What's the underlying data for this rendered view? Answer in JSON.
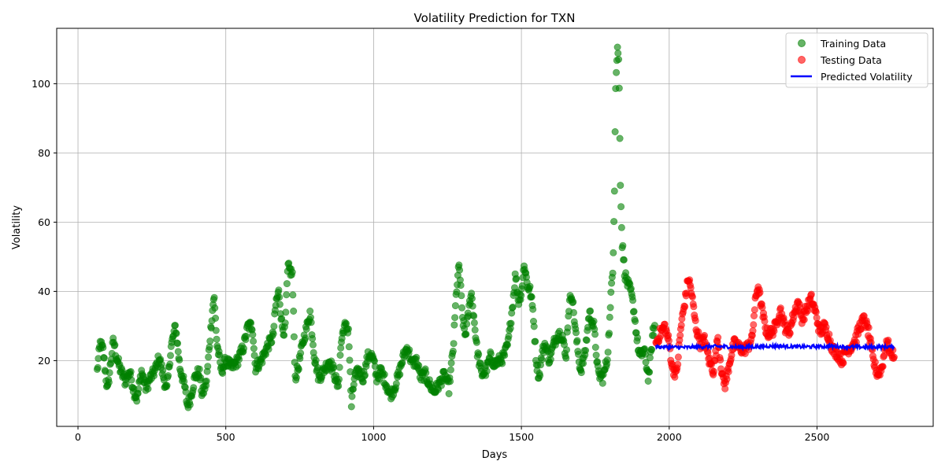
{
  "chart_data": {
    "type": "scatter",
    "title": "Volatility Prediction for TXN",
    "xlabel": "Days",
    "ylabel": "Volatility",
    "xlim": [
      -72,
      2893
    ],
    "ylim": [
      1,
      116
    ],
    "xticks": [
      0,
      500,
      1000,
      1500,
      2000,
      2500
    ],
    "yticks": [
      20,
      40,
      60,
      80,
      100
    ],
    "grid": true,
    "legend_position": "top-right",
    "series": [
      {
        "name": "Training Data",
        "kind": "scatter",
        "color": "#008000",
        "keypoints": [
          [
            65,
            17
          ],
          [
            75,
            25
          ],
          [
            85,
            23
          ],
          [
            95,
            15
          ],
          [
            100,
            11
          ],
          [
            110,
            19
          ],
          [
            120,
            26
          ],
          [
            130,
            21
          ],
          [
            145,
            17
          ],
          [
            160,
            14
          ],
          [
            175,
            17
          ],
          [
            190,
            11
          ],
          [
            200,
            9
          ],
          [
            215,
            17
          ],
          [
            230,
            12
          ],
          [
            245,
            15
          ],
          [
            260,
            17
          ],
          [
            275,
            21
          ],
          [
            290,
            15
          ],
          [
            300,
            11
          ],
          [
            315,
            24
          ],
          [
            330,
            30
          ],
          [
            345,
            18
          ],
          [
            360,
            13
          ],
          [
            370,
            7
          ],
          [
            380,
            9
          ],
          [
            395,
            15
          ],
          [
            410,
            17
          ],
          [
            420,
            10
          ],
          [
            435,
            14
          ],
          [
            450,
            30
          ],
          [
            460,
            39
          ],
          [
            470,
            25
          ],
          [
            485,
            17
          ],
          [
            500,
            20
          ],
          [
            520,
            18
          ],
          [
            540,
            20
          ],
          [
            560,
            24
          ],
          [
            575,
            30
          ],
          [
            590,
            30
          ],
          [
            600,
            18
          ],
          [
            620,
            20
          ],
          [
            640,
            24
          ],
          [
            660,
            27
          ],
          [
            670,
            37
          ],
          [
            680,
            40
          ],
          [
            690,
            30
          ],
          [
            700,
            28
          ],
          [
            710,
            47
          ],
          [
            725,
            45
          ],
          [
            735,
            15
          ],
          [
            745,
            18
          ],
          [
            760,
            25
          ],
          [
            775,
            30
          ],
          [
            785,
            34
          ],
          [
            800,
            21
          ],
          [
            815,
            15
          ],
          [
            830,
            17
          ],
          [
            850,
            20
          ],
          [
            865,
            17
          ],
          [
            880,
            12
          ],
          [
            890,
            25
          ],
          [
            900,
            30
          ],
          [
            915,
            29
          ],
          [
            925,
            7
          ],
          [
            935,
            15
          ],
          [
            950,
            17
          ],
          [
            965,
            15
          ],
          [
            980,
            21
          ],
          [
            990,
            22
          ],
          [
            1000,
            20
          ],
          [
            1010,
            15
          ],
          [
            1025,
            17
          ],
          [
            1040,
            14
          ],
          [
            1055,
            10
          ],
          [
            1070,
            12
          ],
          [
            1085,
            16
          ],
          [
            1100,
            21
          ],
          [
            1115,
            24
          ],
          [
            1130,
            19
          ],
          [
            1145,
            20
          ],
          [
            1160,
            15
          ],
          [
            1175,
            16
          ],
          [
            1190,
            13
          ],
          [
            1205,
            11
          ],
          [
            1220,
            13
          ],
          [
            1240,
            16
          ],
          [
            1255,
            12
          ],
          [
            1270,
            24
          ],
          [
            1280,
            40
          ],
          [
            1290,
            48
          ],
          [
            1300,
            33
          ],
          [
            1310,
            27
          ],
          [
            1320,
            33
          ],
          [
            1330,
            40
          ],
          [
            1340,
            32
          ],
          [
            1350,
            23
          ],
          [
            1365,
            16
          ],
          [
            1380,
            17
          ],
          [
            1395,
            21
          ],
          [
            1410,
            19
          ],
          [
            1425,
            20
          ],
          [
            1440,
            21
          ],
          [
            1455,
            25
          ],
          [
            1470,
            36
          ],
          [
            1480,
            45
          ],
          [
            1490,
            37
          ],
          [
            1500,
            40
          ],
          [
            1510,
            48
          ],
          [
            1520,
            42
          ],
          [
            1530,
            40
          ],
          [
            1540,
            34
          ],
          [
            1550,
            20
          ],
          [
            1560,
            15
          ],
          [
            1570,
            22
          ],
          [
            1580,
            25
          ],
          [
            1595,
            20
          ],
          [
            1610,
            25
          ],
          [
            1625,
            28
          ],
          [
            1640,
            27
          ],
          [
            1650,
            20
          ],
          [
            1660,
            35
          ],
          [
            1670,
            40
          ],
          [
            1685,
            27
          ],
          [
            1700,
            17
          ],
          [
            1715,
            22
          ],
          [
            1730,
            34
          ],
          [
            1745,
            30
          ],
          [
            1760,
            16
          ],
          [
            1775,
            15
          ],
          [
            1790,
            20
          ],
          [
            1800,
            33
          ],
          [
            1805,
            42
          ],
          [
            1810,
            48
          ],
          [
            1815,
            70
          ],
          [
            1818,
            96
          ],
          [
            1822,
            106
          ],
          [
            1826,
            111
          ],
          [
            1830,
            105
          ],
          [
            1835,
            72
          ],
          [
            1840,
            55
          ],
          [
            1850,
            45
          ],
          [
            1860,
            42
          ],
          [
            1870,
            40
          ],
          [
            1880,
            35
          ],
          [
            1890,
            27
          ],
          [
            1900,
            21
          ],
          [
            1915,
            23
          ],
          [
            1930,
            15
          ],
          [
            1945,
            28
          ],
          [
            1952,
            30
          ]
        ]
      },
      {
        "name": "Testing Data",
        "kind": "scatter",
        "color": "#ff0000",
        "keypoints": [
          [
            1955,
            25
          ],
          [
            1970,
            28
          ],
          [
            1985,
            30
          ],
          [
            2000,
            25
          ],
          [
            2010,
            18
          ],
          [
            2025,
            16
          ],
          [
            2040,
            30
          ],
          [
            2055,
            38
          ],
          [
            2065,
            44
          ],
          [
            2075,
            40
          ],
          [
            2090,
            30
          ],
          [
            2105,
            25
          ],
          [
            2120,
            26
          ],
          [
            2135,
            20
          ],
          [
            2150,
            17
          ],
          [
            2165,
            27
          ],
          [
            2180,
            15
          ],
          [
            2190,
            13
          ],
          [
            2205,
            20
          ],
          [
            2220,
            25
          ],
          [
            2235,
            24
          ],
          [
            2250,
            23
          ],
          [
            2265,
            24
          ],
          [
            2280,
            26
          ],
          [
            2290,
            36
          ],
          [
            2300,
            42
          ],
          [
            2315,
            34
          ],
          [
            2330,
            28
          ],
          [
            2345,
            28
          ],
          [
            2360,
            30
          ],
          [
            2375,
            35
          ],
          [
            2390,
            30
          ],
          [
            2405,
            28
          ],
          [
            2420,
            33
          ],
          [
            2435,
            37
          ],
          [
            2450,
            32
          ],
          [
            2465,
            35
          ],
          [
            2480,
            38
          ],
          [
            2495,
            34
          ],
          [
            2510,
            28
          ],
          [
            2525,
            30
          ],
          [
            2540,
            27
          ],
          [
            2555,
            23
          ],
          [
            2570,
            22
          ],
          [
            2585,
            20
          ],
          [
            2600,
            23
          ],
          [
            2615,
            24
          ],
          [
            2630,
            26
          ],
          [
            2645,
            30
          ],
          [
            2660,
            32
          ],
          [
            2675,
            28
          ],
          [
            2690,
            20
          ],
          [
            2705,
            16
          ],
          [
            2720,
            18
          ],
          [
            2735,
            26
          ],
          [
            2750,
            22
          ],
          [
            2762,
            22
          ]
        ]
      },
      {
        "name": "Predicted Volatility",
        "kind": "line",
        "color": "#0000ff",
        "keypoints": [
          [
            1955,
            24
          ],
          [
            2050,
            23.8
          ],
          [
            2150,
            24.1
          ],
          [
            2250,
            23.9
          ],
          [
            2350,
            24.2
          ],
          [
            2450,
            24
          ],
          [
            2550,
            24.1
          ],
          [
            2650,
            23.9
          ],
          [
            2762,
            24
          ]
        ]
      }
    ]
  }
}
